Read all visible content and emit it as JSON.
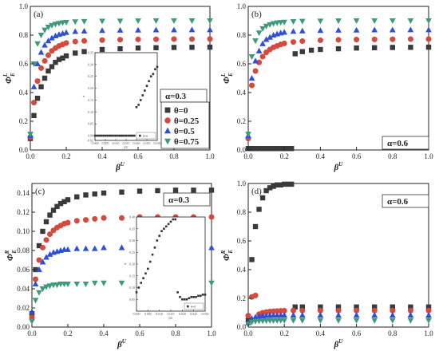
{
  "chart_data": [
    {
      "type": "scatter",
      "panel_label": "(a)",
      "xlabel": "β^U",
      "ylabel": "Φ_E^L",
      "xlim": [
        0,
        1.0
      ],
      "ylim": [
        0,
        1.0
      ],
      "xticks": [
        "0.0",
        "0.2",
        "0.4",
        "0.6",
        "0.8",
        "1.0"
      ],
      "yticks": [
        "0.0",
        "0.2",
        "0.4",
        "0.6",
        "0.8",
        "1.0"
      ],
      "legend_position": "bottom-right",
      "alpha_label": "α=0.3",
      "series": [
        {
          "name": "θ=0",
          "marker": "square",
          "color": "#3a3a3a",
          "x": [
            0.0,
            0.02,
            0.04,
            0.06,
            0.08,
            0.1,
            0.12,
            0.14,
            0.16,
            0.18,
            0.2,
            0.25,
            0.3,
            0.4,
            0.5,
            0.6,
            0.7,
            0.8,
            0.9,
            1.0
          ],
          "y": [
            0.08,
            0.24,
            0.36,
            0.44,
            0.5,
            0.55,
            0.58,
            0.61,
            0.63,
            0.64,
            0.655,
            0.675,
            0.685,
            0.7,
            0.705,
            0.71,
            0.712,
            0.714,
            0.715,
            0.716
          ]
        },
        {
          "name": "θ=0.25",
          "marker": "circle",
          "color": "#d44a3e",
          "x": [
            0.0,
            0.02,
            0.04,
            0.06,
            0.08,
            0.1,
            0.12,
            0.14,
            0.16,
            0.18,
            0.2,
            0.25,
            0.3,
            0.4,
            0.5,
            0.6,
            0.7,
            0.8,
            0.9,
            1.0
          ],
          "y": [
            0.09,
            0.33,
            0.48,
            0.57,
            0.62,
            0.66,
            0.69,
            0.71,
            0.725,
            0.735,
            0.745,
            0.755,
            0.76,
            0.765,
            0.768,
            0.77,
            0.771,
            0.772,
            0.772,
            0.773
          ]
        },
        {
          "name": "θ=0.5",
          "marker": "triangle-up",
          "color": "#2f4fd6",
          "x": [
            0.0,
            0.02,
            0.04,
            0.06,
            0.08,
            0.1,
            0.12,
            0.14,
            0.16,
            0.18,
            0.2,
            0.25,
            0.3,
            0.4,
            0.5,
            0.6,
            0.7,
            0.8,
            0.9,
            1.0
          ],
          "y": [
            0.1,
            0.44,
            0.6,
            0.68,
            0.73,
            0.76,
            0.78,
            0.795,
            0.805,
            0.812,
            0.818,
            0.825,
            0.828,
            0.832,
            0.834,
            0.835,
            0.836,
            0.836,
            0.837,
            0.837
          ]
        },
        {
          "name": "θ=0.75",
          "marker": "triangle-down",
          "color": "#3f9a78",
          "x": [
            0.0,
            0.02,
            0.04,
            0.06,
            0.08,
            0.1,
            0.12,
            0.14,
            0.16,
            0.18,
            0.2,
            0.25,
            0.3,
            0.4,
            0.5,
            0.6,
            0.7,
            0.8,
            0.9,
            1.0
          ],
          "y": [
            0.11,
            0.6,
            0.74,
            0.8,
            0.835,
            0.855,
            0.868,
            0.876,
            0.882,
            0.886,
            0.889,
            0.893,
            0.895,
            0.897,
            0.898,
            0.899,
            0.9,
            0.9,
            0.9,
            0.9
          ]
        }
      ],
      "inset": {
        "xlabel": "β^U",
        "ylabel": "ϕ",
        "xlim": [
          0.0,
          0.03
        ],
        "ylim": [
          -0.02,
          0.35
        ],
        "xticks": [
          "0.000",
          "0.005",
          "0.010",
          "0.015",
          "0.020",
          "0.025",
          "0.030"
        ],
        "yticks": [
          "-0.02",
          "0.00",
          "0.05",
          "0.10",
          "0.15",
          "0.20",
          "0.25",
          "0.30",
          "0.35"
        ],
        "legend": "θ=0",
        "x": [
          0.0,
          0.001,
          0.002,
          0.003,
          0.004,
          0.005,
          0.006,
          0.007,
          0.008,
          0.009,
          0.01,
          0.011,
          0.012,
          0.013,
          0.014,
          0.015,
          0.016,
          0.017,
          0.018,
          0.019,
          0.02,
          0.021,
          0.022,
          0.023,
          0.024,
          0.025,
          0.026,
          0.027,
          0.028,
          0.029,
          0.03
        ],
        "y": [
          0.0,
          0.0,
          0.0,
          0.0,
          0.0,
          0.0,
          0.0,
          0.0,
          0.0,
          0.0,
          0.0,
          0.0,
          0.0,
          0.0,
          0.0,
          0.0,
          0.0,
          0.0,
          0.0,
          0.0,
          0.12,
          0.13,
          0.15,
          0.17,
          0.19,
          0.21,
          0.23,
          0.25,
          0.26,
          0.28,
          0.29
        ]
      }
    },
    {
      "type": "scatter",
      "panel_label": "(b)",
      "xlabel": "β^U",
      "ylabel": "Φ_E^L",
      "xlim": [
        0,
        1.0
      ],
      "ylim": [
        0,
        1.0
      ],
      "xticks": [
        "0.0",
        "0.2",
        "0.4",
        "0.6",
        "0.8",
        "1.0"
      ],
      "yticks": [
        "0.0",
        "0.2",
        "0.4",
        "0.6",
        "0.8",
        "1.0"
      ],
      "alpha_label": "α=0.6",
      "series": [
        {
          "name": "θ=0",
          "marker": "square",
          "color": "#3a3a3a",
          "x": [
            0.0,
            0.02,
            0.04,
            0.06,
            0.08,
            0.1,
            0.12,
            0.14,
            0.16,
            0.18,
            0.2,
            0.22,
            0.24,
            0.26,
            0.3,
            0.35,
            0.4,
            0.5,
            0.6,
            0.7,
            0.8,
            0.9,
            1.0
          ],
          "y": [
            0.01,
            0.01,
            0.01,
            0.01,
            0.01,
            0.01,
            0.01,
            0.01,
            0.01,
            0.01,
            0.01,
            0.01,
            0.01,
            0.67,
            0.685,
            0.695,
            0.7,
            0.705,
            0.71,
            0.712,
            0.714,
            0.715,
            0.716
          ]
        },
        {
          "name": "θ=0.25",
          "marker": "circle",
          "color": "#d44a3e",
          "x": [
            0.0,
            0.02,
            0.04,
            0.06,
            0.08,
            0.1,
            0.12,
            0.14,
            0.16,
            0.18,
            0.2,
            0.25,
            0.3,
            0.4,
            0.5,
            0.6,
            0.7,
            0.8,
            0.9,
            1.0
          ],
          "y": [
            0.08,
            0.45,
            0.55,
            0.61,
            0.65,
            0.68,
            0.7,
            0.715,
            0.725,
            0.735,
            0.742,
            0.752,
            0.758,
            0.764,
            0.767,
            0.769,
            0.77,
            0.771,
            0.772,
            0.772
          ]
        },
        {
          "name": "θ=0.5",
          "marker": "triangle-up",
          "color": "#2f4fd6",
          "x": [
            0.0,
            0.02,
            0.04,
            0.06,
            0.08,
            0.1,
            0.12,
            0.14,
            0.16,
            0.18,
            0.2,
            0.25,
            0.3,
            0.4,
            0.5,
            0.6,
            0.7,
            0.8,
            0.9,
            1.0
          ],
          "y": [
            0.1,
            0.5,
            0.62,
            0.69,
            0.74,
            0.77,
            0.785,
            0.8,
            0.808,
            0.815,
            0.82,
            0.826,
            0.829,
            0.832,
            0.834,
            0.835,
            0.836,
            0.836,
            0.837,
            0.837
          ]
        },
        {
          "name": "θ=0.75",
          "marker": "triangle-down",
          "color": "#3f9a78",
          "x": [
            0.0,
            0.02,
            0.04,
            0.06,
            0.08,
            0.1,
            0.12,
            0.14,
            0.16,
            0.18,
            0.2,
            0.25,
            0.3,
            0.4,
            0.5,
            0.6,
            0.7,
            0.8,
            0.9,
            1.0
          ],
          "y": [
            0.11,
            0.65,
            0.76,
            0.815,
            0.845,
            0.862,
            0.873,
            0.88,
            0.885,
            0.888,
            0.89,
            0.894,
            0.896,
            0.898,
            0.899,
            0.9,
            0.9,
            0.9,
            0.9,
            0.9
          ]
        }
      ]
    },
    {
      "type": "scatter",
      "panel_label": "(c)",
      "xlabel": "β^U",
      "ylabel": "Φ_E^R",
      "xlim": [
        0,
        1.0
      ],
      "ylim": [
        0,
        0.15
      ],
      "xticks": [
        "0.0",
        "0.2",
        "0.4",
        "0.6",
        "0.8",
        "1.0"
      ],
      "yticks": [
        "0.00",
        "0.02",
        "0.04",
        "0.06",
        "0.08",
        "0.10",
        "0.12",
        "0.14"
      ],
      "alpha_label": "α=0.3",
      "series": [
        {
          "name": "θ=0",
          "marker": "square",
          "color": "#3a3a3a",
          "x": [
            0.0,
            0.02,
            0.04,
            0.06,
            0.08,
            0.1,
            0.12,
            0.14,
            0.16,
            0.18,
            0.2,
            0.25,
            0.3,
            0.35,
            0.4,
            0.5,
            0.6,
            0.7,
            0.8,
            0.9,
            1.0
          ],
          "y": [
            0.014,
            0.06,
            0.085,
            0.1,
            0.11,
            0.117,
            0.122,
            0.126,
            0.129,
            0.131,
            0.133,
            0.136,
            0.138,
            0.139,
            0.14,
            0.141,
            0.142,
            0.1425,
            0.143,
            0.143,
            0.143
          ]
        },
        {
          "name": "θ=0.25",
          "marker": "circle",
          "color": "#d44a3e",
          "x": [
            0.0,
            0.02,
            0.04,
            0.06,
            0.08,
            0.1,
            0.12,
            0.14,
            0.16,
            0.18,
            0.2,
            0.25,
            0.3,
            0.35,
            0.4,
            0.5,
            0.6,
            0.7,
            0.8,
            0.9,
            1.0
          ],
          "y": [
            0.01,
            0.05,
            0.07,
            0.083,
            0.091,
            0.097,
            0.101,
            0.104,
            0.106,
            0.108,
            0.109,
            0.111,
            0.112,
            0.113,
            0.114,
            0.114,
            0.115,
            0.115,
            0.115,
            0.115,
            0.115
          ]
        },
        {
          "name": "θ=0.5",
          "marker": "triangle-up",
          "color": "#2f4fd6",
          "x": [
            0.0,
            0.02,
            0.04,
            0.06,
            0.08,
            0.1,
            0.12,
            0.14,
            0.16,
            0.18,
            0.2,
            0.25,
            0.3,
            0.35,
            0.4,
            0.5,
            0.6,
            0.7,
            0.8,
            0.9,
            1.0
          ],
          "y": [
            0.016,
            0.045,
            0.06,
            0.068,
            0.073,
            0.076,
            0.078,
            0.079,
            0.08,
            0.081,
            0.081,
            0.082,
            0.082,
            0.082,
            0.083,
            0.083,
            0.083,
            0.083,
            0.083,
            0.083,
            0.083
          ]
        },
        {
          "name": "θ=0.75",
          "marker": "triangle-down",
          "color": "#3f9a78",
          "x": [
            0.0,
            0.02,
            0.04,
            0.06,
            0.08,
            0.1,
            0.12,
            0.14,
            0.16,
            0.18,
            0.2,
            0.25,
            0.3,
            0.35,
            0.4,
            0.5,
            0.6,
            0.7,
            0.8,
            0.9,
            1.0
          ],
          "y": [
            0.006,
            0.028,
            0.036,
            0.04,
            0.042,
            0.043,
            0.044,
            0.044,
            0.045,
            0.045,
            0.045,
            0.045,
            0.045,
            0.046,
            0.046,
            0.046,
            0.046,
            0.046,
            0.046,
            0.046,
            0.046
          ]
        }
      ],
      "inset": {
        "xlabel": "β^U",
        "ylabel": "ϕ",
        "xlim": [
          0.0,
          0.03
        ],
        "ylim": [
          0.0,
          0.4
        ],
        "xticks": [
          "0.000",
          "0.005",
          "0.010",
          "0.015",
          "0.020",
          "0.025",
          "0.030"
        ],
        "yticks": [
          "0.05",
          "0.10",
          "0.15",
          "0.20",
          "0.25",
          "0.30",
          "0.35",
          "0.40"
        ],
        "legend": "θ=0",
        "x": [
          0.0,
          0.001,
          0.002,
          0.003,
          0.004,
          0.005,
          0.006,
          0.007,
          0.008,
          0.009,
          0.01,
          0.011,
          0.012,
          0.013,
          0.014,
          0.015,
          0.016,
          0.017,
          0.018,
          0.019,
          0.02,
          0.021,
          0.022,
          0.023,
          0.024,
          0.025,
          0.026,
          0.027,
          0.028,
          0.029,
          0.03
        ],
        "y": [
          0.08,
          0.1,
          0.12,
          0.14,
          0.16,
          0.18,
          0.21,
          0.24,
          0.27,
          0.3,
          0.32,
          0.34,
          0.35,
          0.36,
          0.37,
          0.38,
          0.39,
          0.39,
          0.08,
          0.06,
          0.05,
          0.05,
          0.05,
          0.055,
          0.06,
          0.06,
          0.06,
          0.065,
          0.065,
          0.07,
          0.07
        ]
      }
    },
    {
      "type": "scatter",
      "panel_label": "(d)",
      "xlabel": "β^U",
      "ylabel": "Φ_E^R",
      "xlim": [
        0,
        1.0
      ],
      "ylim": [
        0,
        1.0
      ],
      "xticks": [
        "0.0",
        "0.2",
        "0.4",
        "0.6",
        "0.8",
        "1.0"
      ],
      "yticks": [
        "0.0",
        "0.2",
        "0.4",
        "0.6",
        "0.8",
        "1.0"
      ],
      "alpha_label": "α=0.6",
      "series": [
        {
          "name": "θ=0",
          "marker": "square",
          "color": "#3a3a3a",
          "x": [
            0.0,
            0.02,
            0.04,
            0.06,
            0.08,
            0.1,
            0.12,
            0.14,
            0.16,
            0.18,
            0.2,
            0.22,
            0.24,
            0.26,
            0.3,
            0.4,
            0.5,
            0.6,
            0.7,
            0.8,
            0.9,
            1.0
          ],
          "y": [
            0.05,
            0.47,
            0.7,
            0.82,
            0.9,
            0.95,
            0.97,
            0.98,
            0.99,
            0.99,
            0.995,
            0.995,
            0.995,
            0.14,
            0.14,
            0.14,
            0.14,
            0.14,
            0.14,
            0.14,
            0.14,
            0.14
          ]
        },
        {
          "name": "θ=0.25",
          "marker": "circle",
          "color": "#d44a3e",
          "x": [
            0.0,
            0.02,
            0.04,
            0.06,
            0.08,
            0.1,
            0.12,
            0.14,
            0.16,
            0.18,
            0.2,
            0.25,
            0.3,
            0.4,
            0.5,
            0.6,
            0.7,
            0.8,
            0.9,
            1.0
          ],
          "y": [
            0.08,
            0.21,
            0.22,
            0.09,
            0.1,
            0.105,
            0.108,
            0.11,
            0.112,
            0.113,
            0.114,
            0.115,
            0.115,
            0.115,
            0.115,
            0.115,
            0.115,
            0.115,
            0.115,
            0.115
          ]
        },
        {
          "name": "θ=0.5",
          "marker": "triangle-up",
          "color": "#2f4fd6",
          "x": [
            0.0,
            0.02,
            0.04,
            0.06,
            0.08,
            0.1,
            0.12,
            0.14,
            0.16,
            0.18,
            0.2,
            0.25,
            0.3,
            0.4,
            0.5,
            0.6,
            0.7,
            0.8,
            0.9,
            1.0
          ],
          "y": [
            0.03,
            0.06,
            0.07,
            0.075,
            0.078,
            0.08,
            0.081,
            0.082,
            0.082,
            0.083,
            0.083,
            0.083,
            0.083,
            0.083,
            0.083,
            0.083,
            0.083,
            0.083,
            0.083,
            0.083
          ]
        },
        {
          "name": "θ=0.75",
          "marker": "triangle-down",
          "color": "#3f9a78",
          "x": [
            0.0,
            0.02,
            0.04,
            0.06,
            0.08,
            0.1,
            0.12,
            0.14,
            0.16,
            0.18,
            0.2,
            0.25,
            0.3,
            0.4,
            0.5,
            0.6,
            0.7,
            0.8,
            0.9,
            1.0
          ],
          "y": [
            0.02,
            0.035,
            0.04,
            0.042,
            0.043,
            0.044,
            0.045,
            0.045,
            0.045,
            0.046,
            0.046,
            0.046,
            0.046,
            0.046,
            0.046,
            0.046,
            0.046,
            0.046,
            0.046,
            0.046
          ]
        }
      ]
    }
  ]
}
